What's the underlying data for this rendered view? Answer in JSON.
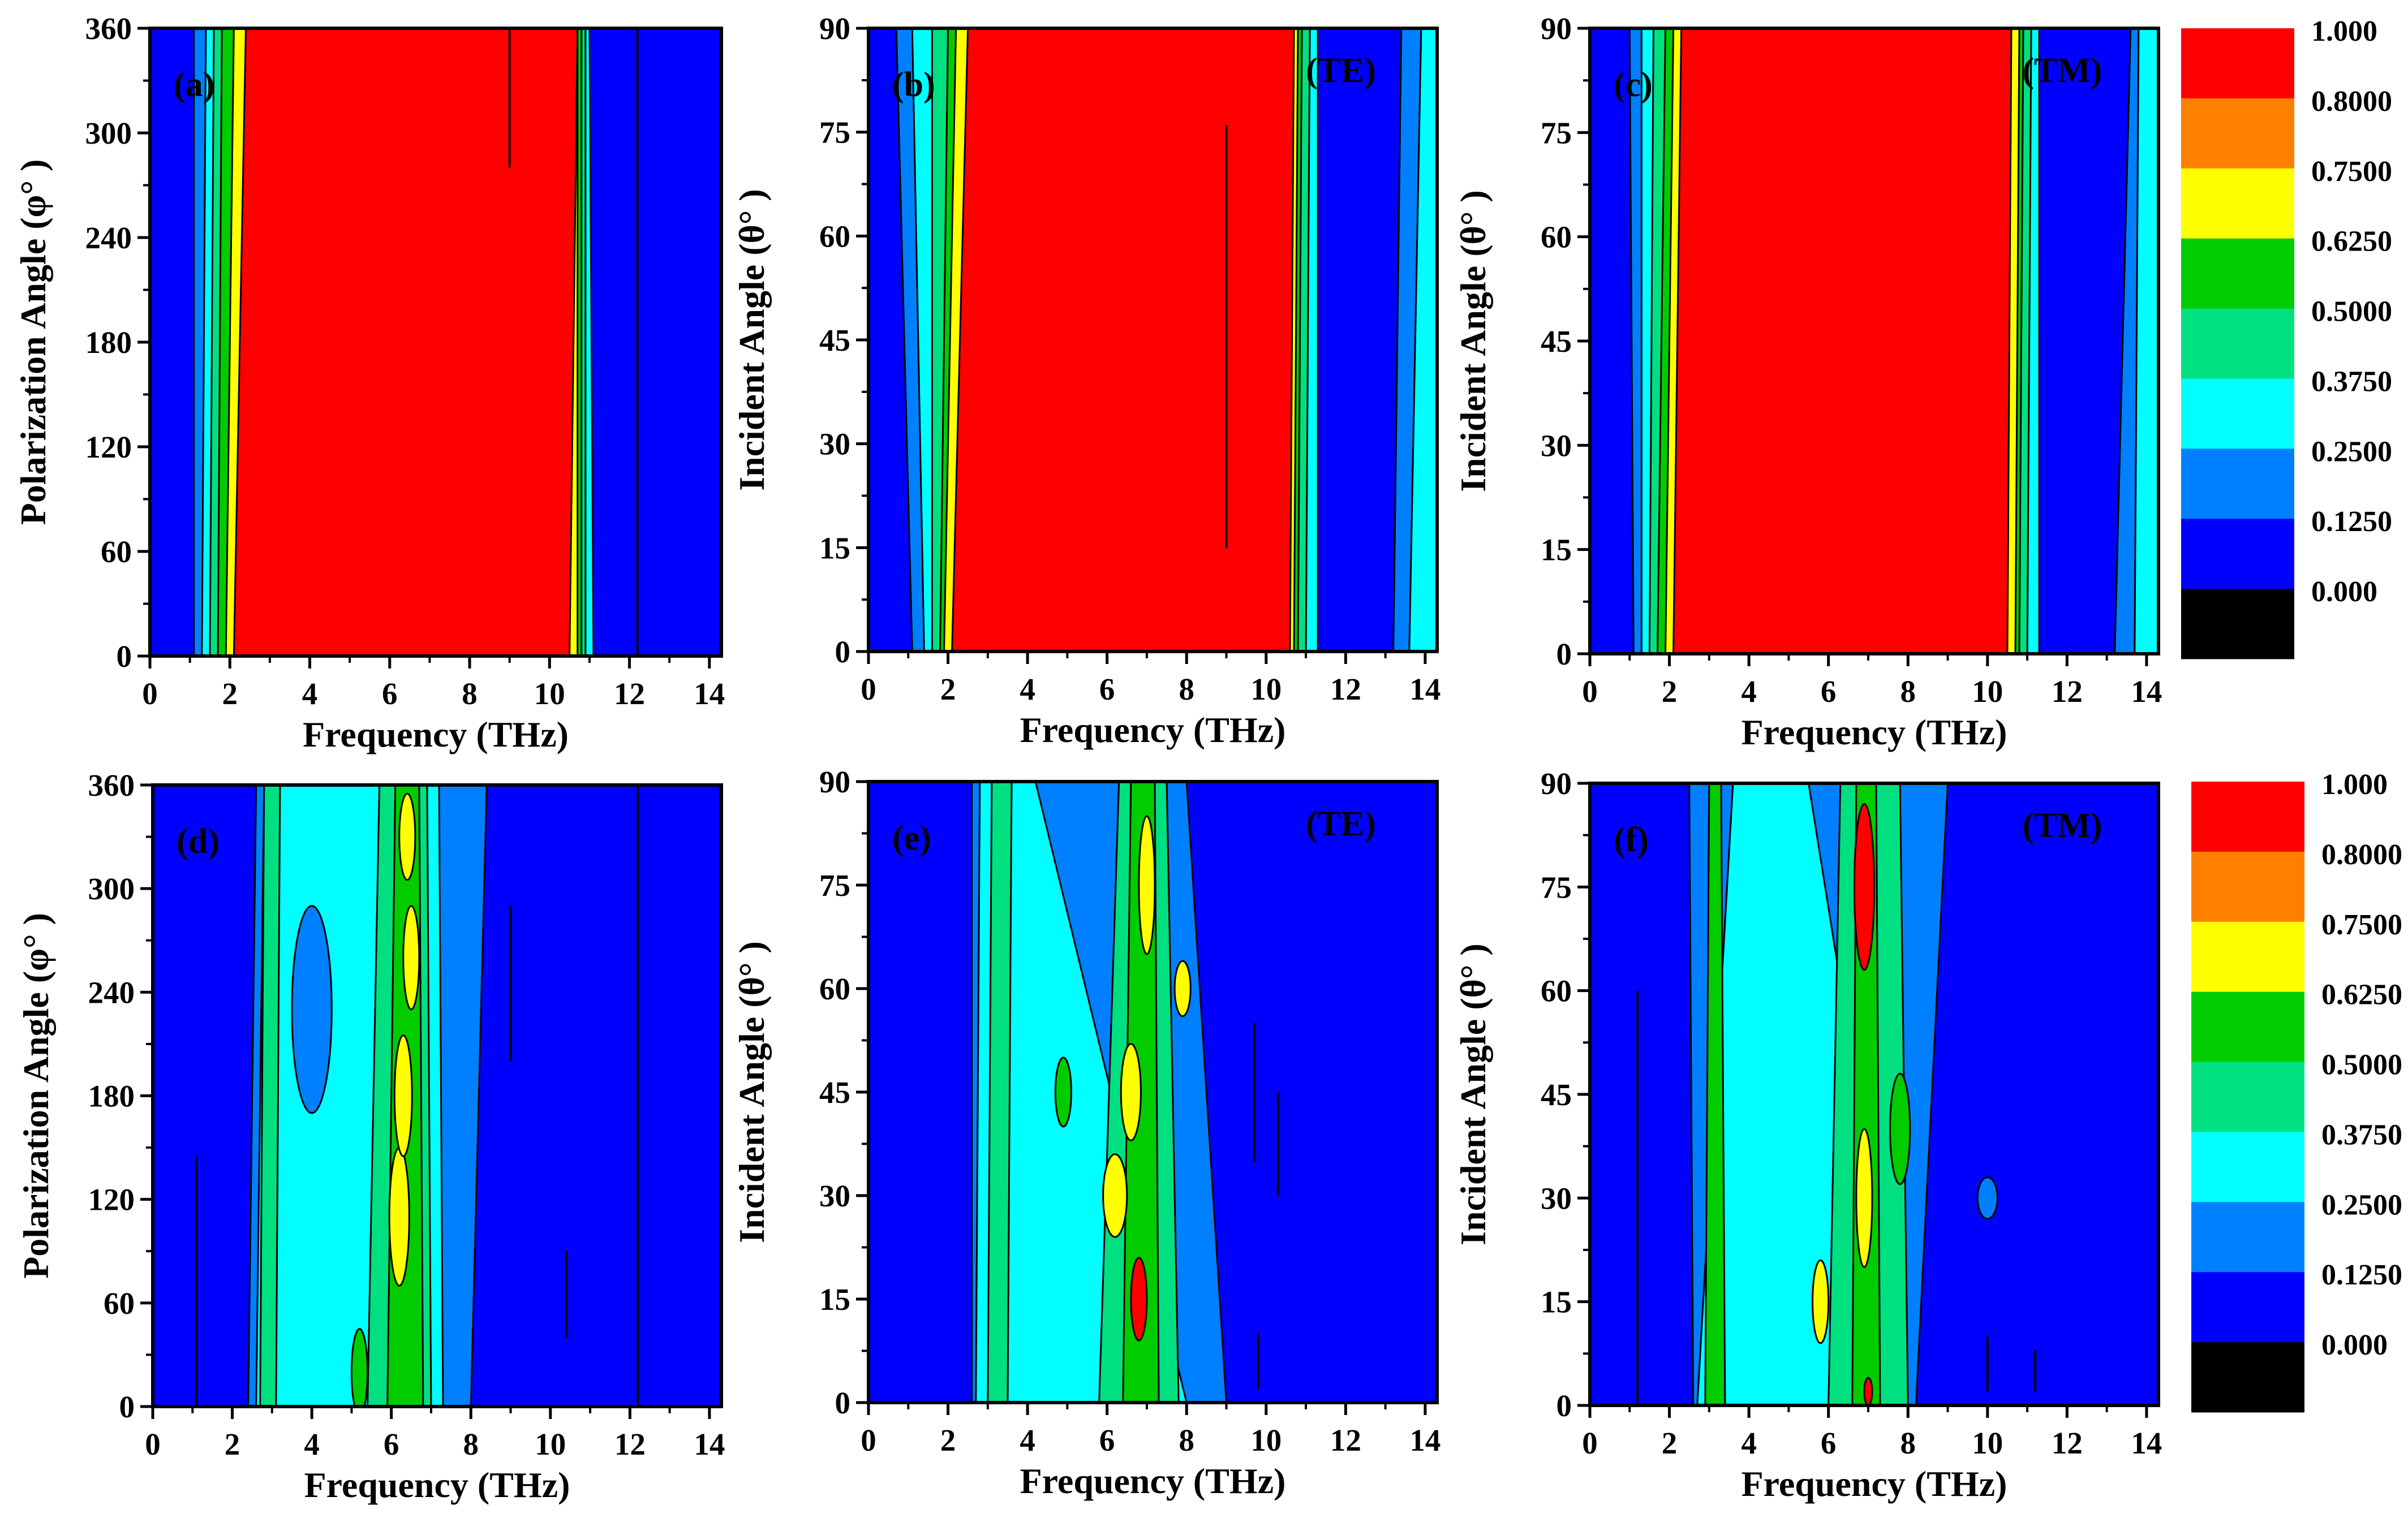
{
  "chart_data": [
    {
      "panel_label": "(a)",
      "type": "heatmap",
      "mode_label": "",
      "xlabel": "Frequency (THz)",
      "ylabel": "Polarization Angle (φ° )",
      "xlim": [
        0,
        14.3
      ],
      "ylim": [
        0,
        360
      ],
      "x_ticks": [
        "0",
        "2",
        "4",
        "6",
        "8",
        "10",
        "12",
        "14"
      ],
      "y_ticks": [
        "0",
        "60",
        "120",
        "180",
        "240",
        "300",
        "360"
      ],
      "x_tick_values": [
        0,
        2,
        4,
        6,
        8,
        10,
        12,
        14
      ],
      "y_tick_values": [
        0,
        60,
        120,
        180,
        240,
        300,
        360
      ],
      "background": 0.05,
      "bands": [
        {
          "x0": [
            1.1,
            1.1
          ],
          "x1": [
            10.8,
            10.8
          ],
          "level": 0.2
        },
        {
          "x0": [
            1.3,
            1.4
          ],
          "x1": [
            11.1,
            11.0
          ],
          "level": 0.3
        },
        {
          "x0": [
            1.5,
            1.6
          ],
          "x1": [
            10.9,
            10.9
          ],
          "level": 0.45
        },
        {
          "x0": [
            1.7,
            1.8
          ],
          "x1": [
            10.8,
            10.8
          ],
          "level": 0.55
        },
        {
          "x0": [
            1.9,
            2.1
          ],
          "x1": [
            10.7,
            10.7
          ],
          "level": 0.7
        },
        {
          "x0": [
            2.1,
            2.4
          ],
          "x1": [
            10.5,
            10.7
          ],
          "level": 0.9
        }
      ],
      "blobs": [],
      "vlines": [
        {
          "x": 12.2,
          "y0": 0,
          "y1": 360
        },
        {
          "x": 9.0,
          "y0": 280,
          "y1": 360
        }
      ]
    },
    {
      "panel_label": "(b)",
      "type": "heatmap",
      "mode_label": "(TE)",
      "xlabel": "Frequency (THz)",
      "ylabel": "Incident Angle (θ° )",
      "xlim": [
        0,
        14.3
      ],
      "ylim": [
        0,
        90
      ],
      "x_ticks": [
        "0",
        "2",
        "4",
        "6",
        "8",
        "10",
        "12",
        "14"
      ],
      "y_ticks": [
        "0",
        "15",
        "30",
        "45",
        "60",
        "75",
        "90"
      ],
      "x_tick_values": [
        0,
        2,
        4,
        6,
        8,
        10,
        12,
        14
      ],
      "y_tick_values": [
        0,
        15,
        30,
        45,
        60,
        75,
        90
      ],
      "background": 0.05,
      "bands": [
        {
          "x0": [
            1.1,
            0.7
          ],
          "x1": [
            14.3,
            14.3
          ],
          "level": 0.2
        },
        {
          "x0": [
            1.4,
            1.1
          ],
          "x1": [
            11.3,
            11.4
          ],
          "level": 0.3
        },
        {
          "x0": [
            1.6,
            1.6
          ],
          "x1": [
            11.0,
            11.1
          ],
          "level": 0.45
        },
        {
          "x0": [
            1.8,
            2.0
          ],
          "x1": [
            10.8,
            10.9
          ],
          "level": 0.55
        },
        {
          "x0": [
            1.9,
            2.2
          ],
          "x1": [
            10.7,
            10.8
          ],
          "level": 0.7
        },
        {
          "x0": [
            2.1,
            2.5
          ],
          "x1": [
            10.6,
            10.7
          ],
          "level": 0.9
        },
        {
          "x0": [
            11.3,
            11.3
          ],
          "x1": [
            13.2,
            13.4
          ],
          "level": 0.05
        },
        {
          "x0": [
            13.6,
            13.9
          ],
          "x1": [
            14.3,
            14.3
          ],
          "level": 0.3
        }
      ],
      "blobs": [],
      "vlines": [
        {
          "x": 9.0,
          "y0": 15,
          "y1": 76
        }
      ]
    },
    {
      "panel_label": "(c)",
      "type": "heatmap",
      "mode_label": "(TM)",
      "xlabel": "Frequency (THz)",
      "ylabel": "Incident Angle (θ° )",
      "xlim": [
        0,
        14.3
      ],
      "ylim": [
        0,
        90
      ],
      "x_ticks": [
        "0",
        "2",
        "4",
        "6",
        "8",
        "10",
        "12",
        "14"
      ],
      "y_ticks": [
        "0",
        "15",
        "30",
        "45",
        "60",
        "75",
        "90"
      ],
      "x_tick_values": [
        0,
        2,
        4,
        6,
        8,
        10,
        12,
        14
      ],
      "y_tick_values": [
        0,
        15,
        30,
        45,
        60,
        75,
        90
      ],
      "background": 0.05,
      "bands": [
        {
          "x0": [
            1.1,
            1.0
          ],
          "x1": [
            14.3,
            14.3
          ],
          "level": 0.2
        },
        {
          "x0": [
            1.3,
            1.3
          ],
          "x1": [
            11.3,
            11.3
          ],
          "level": 0.3
        },
        {
          "x0": [
            1.5,
            1.6
          ],
          "x1": [
            11.0,
            11.1
          ],
          "level": 0.45
        },
        {
          "x0": [
            1.7,
            1.9
          ],
          "x1": [
            10.8,
            10.9
          ],
          "level": 0.55
        },
        {
          "x0": [
            1.9,
            2.1
          ],
          "x1": [
            10.7,
            10.8
          ],
          "level": 0.7
        },
        {
          "x0": [
            2.1,
            2.3
          ],
          "x1": [
            10.5,
            10.6
          ],
          "level": 0.9
        },
        {
          "x0": [
            11.3,
            11.3
          ],
          "x1": [
            13.2,
            13.6
          ],
          "level": 0.05
        },
        {
          "x0": [
            13.7,
            13.8
          ],
          "x1": [
            14.3,
            14.3
          ],
          "level": 0.3
        }
      ],
      "blobs": [],
      "vlines": []
    },
    {
      "panel_label": "(d)",
      "type": "heatmap",
      "mode_label": "",
      "xlabel": "Frequency (THz)",
      "ylabel": "Polarization Angle (φ° )",
      "xlim": [
        0,
        14.3
      ],
      "ylim": [
        0,
        360
      ],
      "x_ticks": [
        "0",
        "2",
        "4",
        "6",
        "8",
        "10",
        "12",
        "14"
      ],
      "y_ticks": [
        "0",
        "60",
        "120",
        "180",
        "240",
        "300",
        "360"
      ],
      "x_tick_values": [
        0,
        2,
        4,
        6,
        8,
        10,
        12,
        14
      ],
      "y_tick_values": [
        0,
        60,
        120,
        180,
        240,
        300,
        360
      ],
      "background": 0.05,
      "bands": [
        {
          "x0": [
            2.4,
            2.6
          ],
          "x1": [
            8.0,
            8.4
          ],
          "level": 0.2
        },
        {
          "x0": [
            2.6,
            2.8
          ],
          "x1": [
            7.3,
            7.2
          ],
          "level": 0.3
        },
        {
          "x0": [
            5.4,
            5.7
          ],
          "x1": [
            7.0,
            6.9
          ],
          "level": 0.45
        },
        {
          "x0": [
            5.9,
            6.1
          ],
          "x1": [
            6.8,
            6.7
          ],
          "level": 0.55
        },
        {
          "x0": [
            2.7,
            2.8
          ],
          "x1": [
            3.1,
            3.2
          ],
          "level": 0.45
        }
      ],
      "blobs": [
        {
          "x": 6.2,
          "y": 110,
          "rx": 0.25,
          "ry": 40,
          "level": 0.7
        },
        {
          "x": 6.3,
          "y": 180,
          "rx": 0.22,
          "ry": 35,
          "level": 0.7
        },
        {
          "x": 6.5,
          "y": 260,
          "rx": 0.2,
          "ry": 30,
          "level": 0.7
        },
        {
          "x": 6.4,
          "y": 330,
          "rx": 0.2,
          "ry": 25,
          "level": 0.7
        },
        {
          "x": 5.2,
          "y": 20,
          "rx": 0.2,
          "ry": 25,
          "level": 0.55
        },
        {
          "x": 4.0,
          "y": 230,
          "rx": 0.5,
          "ry": 60,
          "level": 0.2
        }
      ],
      "vlines": [
        {
          "x": 12.2,
          "y0": 0,
          "y1": 360
        },
        {
          "x": 1.1,
          "y0": 0,
          "y1": 145
        },
        {
          "x": 9.0,
          "y0": 200,
          "y1": 290
        },
        {
          "x": 10.4,
          "y0": 40,
          "y1": 90
        }
      ]
    },
    {
      "panel_label": "(e)",
      "type": "heatmap",
      "mode_label": "(TE)",
      "xlabel": "Frequency (THz)",
      "ylabel": "Incident Angle (θ° )",
      "xlim": [
        0,
        14.3
      ],
      "ylim": [
        0,
        90
      ],
      "x_ticks": [
        "0",
        "2",
        "4",
        "6",
        "8",
        "10",
        "12",
        "14"
      ],
      "y_ticks": [
        "0",
        "15",
        "30",
        "45",
        "60",
        "75",
        "90"
      ],
      "x_tick_values": [
        0,
        2,
        4,
        6,
        8,
        10,
        12,
        14
      ],
      "y_tick_values": [
        0,
        15,
        30,
        45,
        60,
        75,
        90
      ],
      "background": 0.05,
      "bands": [
        {
          "x0": [
            2.6,
            2.6
          ],
          "x1": [
            9.0,
            8.0
          ],
          "level": 0.2
        },
        {
          "x0": [
            2.7,
            2.8
          ],
          "x1": [
            8.0,
            4.2
          ],
          "level": 0.3
        },
        {
          "x0": [
            5.8,
            6.3
          ],
          "x1": [
            7.8,
            7.5
          ],
          "level": 0.45
        },
        {
          "x0": [
            6.4,
            6.6
          ],
          "x1": [
            7.3,
            7.2
          ],
          "level": 0.55
        },
        {
          "x0": [
            3.0,
            3.1
          ],
          "x1": [
            3.5,
            3.6
          ],
          "level": 0.45
        }
      ],
      "blobs": [
        {
          "x": 6.2,
          "y": 30,
          "rx": 0.3,
          "ry": 6,
          "level": 0.7
        },
        {
          "x": 6.8,
          "y": 15,
          "rx": 0.2,
          "ry": 6,
          "level": 0.9
        },
        {
          "x": 6.6,
          "y": 45,
          "rx": 0.25,
          "ry": 7,
          "level": 0.7
        },
        {
          "x": 7.0,
          "y": 75,
          "rx": 0.2,
          "ry": 10,
          "level": 0.7
        },
        {
          "x": 4.9,
          "y": 45,
          "rx": 0.2,
          "ry": 5,
          "level": 0.55
        },
        {
          "x": 7.9,
          "y": 60,
          "rx": 0.2,
          "ry": 4,
          "level": 0.7
        }
      ],
      "vlines": [
        {
          "x": 9.7,
          "y0": 35,
          "y1": 55
        },
        {
          "x": 10.3,
          "y0": 30,
          "y1": 45
        },
        {
          "x": 9.8,
          "y0": 2,
          "y1": 10
        }
      ]
    },
    {
      "panel_label": "(f)",
      "type": "heatmap",
      "mode_label": "(TM)",
      "xlabel": "Frequency (THz)",
      "ylabel": "Incident Angle (θ° )",
      "xlim": [
        0,
        14.3
      ],
      "ylim": [
        0,
        90
      ],
      "x_ticks": [
        "0",
        "2",
        "4",
        "6",
        "8",
        "10",
        "12",
        "14"
      ],
      "y_ticks": [
        "0",
        "15",
        "30",
        "45",
        "60",
        "75",
        "90"
      ],
      "x_tick_values": [
        0,
        2,
        4,
        6,
        8,
        10,
        12,
        14
      ],
      "y_tick_values": [
        0,
        15,
        30,
        45,
        60,
        75,
        90
      ],
      "background": 0.05,
      "bands": [
        {
          "x0": [
            2.6,
            2.5
          ],
          "x1": [
            8.2,
            9.0
          ],
          "level": 0.2
        },
        {
          "x0": [
            2.7,
            3.6
          ],
          "x1": [
            8.0,
            5.5
          ],
          "level": 0.3
        },
        {
          "x0": [
            6.0,
            6.3
          ],
          "x1": [
            8.0,
            7.8
          ],
          "level": 0.45
        },
        {
          "x0": [
            6.6,
            6.7
          ],
          "x1": [
            7.3,
            7.2
          ],
          "level": 0.55
        },
        {
          "x0": [
            2.9,
            3.0
          ],
          "x1": [
            3.4,
            3.3
          ],
          "level": 0.55
        }
      ],
      "blobs": [
        {
          "x": 6.9,
          "y": 30,
          "rx": 0.2,
          "ry": 10,
          "level": 0.7
        },
        {
          "x": 6.9,
          "y": 75,
          "rx": 0.25,
          "ry": 12,
          "level": 0.8
        },
        {
          "x": 5.8,
          "y": 15,
          "rx": 0.2,
          "ry": 6,
          "level": 0.7
        },
        {
          "x": 7.8,
          "y": 40,
          "rx": 0.25,
          "ry": 8,
          "level": 0.55
        },
        {
          "x": 10.0,
          "y": 30,
          "rx": 0.25,
          "ry": 3,
          "level": 0.2
        },
        {
          "x": 7.0,
          "y": 2,
          "rx": 0.1,
          "ry": 2,
          "level": 0.9
        }
      ],
      "vlines": [
        {
          "x": 1.2,
          "y0": 0,
          "y1": 60
        },
        {
          "x": 10.0,
          "y0": 2,
          "y1": 10
        },
        {
          "x": 11.2,
          "y0": 2,
          "y1": 8
        }
      ]
    }
  ],
  "colorbar": {
    "labels": [
      "1.000",
      "0.8000",
      "0.7500",
      "0.6250",
      "0.5000",
      "0.3750",
      "0.2500",
      "0.1250",
      "0.000"
    ],
    "colors": [
      "#ff0000",
      "#ff7f00",
      "#ffff00",
      "#00cc00",
      "#00e080",
      "#00ffff",
      "#0080ff",
      "#0000ff",
      "#000000"
    ],
    "thresholds": [
      0.8,
      0.75,
      0.625,
      0.5,
      0.375,
      0.25,
      0.125,
      0.0,
      -1
    ]
  }
}
